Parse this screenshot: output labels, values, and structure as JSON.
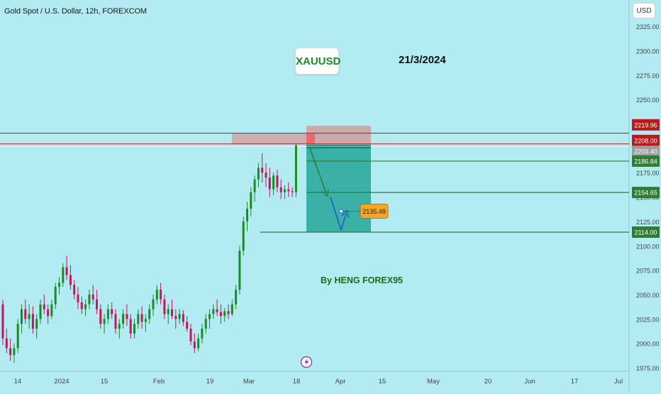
{
  "header": {
    "title": "Gold Spot / U.S. Dollar, 12h, FOREXCOM",
    "currency": "USD"
  },
  "annotations": {
    "symbol": "XAUUSD",
    "date": "21/3/2024",
    "author": "By HENG FOREX95"
  },
  "colors": {
    "background": "#b2ebf2",
    "bull": "#1b8a2a",
    "bear": "#c2185b",
    "red_line": "#c62828",
    "green_line": "#2e7d32",
    "zone_red": "#e57373",
    "zone_teal": "#26a69a",
    "arrow_green": "#2e7d32",
    "arrow_blue": "#1565c0",
    "price_orange": "#f5a623"
  },
  "chart_data": {
    "type": "candlestick",
    "ylim": [
      1975,
      2335
    ],
    "y_ticks": [
      "1975.00",
      "2000.00",
      "2025.00",
      "2050.00",
      "2075.00",
      "2100.00",
      "2125.00",
      "2150.00",
      "2175.00",
      "2200.00",
      "2225.00",
      "2250.00",
      "2275.00",
      "2300.00",
      "2325.00"
    ],
    "x_ticks": [
      "14",
      "2024",
      "15",
      "Feb",
      "19",
      "Mar",
      "18",
      "Apr",
      "15",
      "May",
      "20",
      "Jun",
      "17",
      "Jul"
    ],
    "price_tags": [
      {
        "label": "2219.96",
        "kind": "red"
      },
      {
        "label": "2208.00",
        "kind": "red"
      },
      {
        "label": "2203.40",
        "kind": "gray"
      },
      {
        "label": "2186.84",
        "kind": "green"
      },
      {
        "label": "2154.65",
        "kind": "green"
      },
      {
        "label": "2114.00",
        "kind": "green"
      }
    ],
    "float_tag": "2135.48",
    "candles_ohlc": [
      [
        2040,
        2045,
        1998,
        2005
      ],
      [
        2005,
        2015,
        1990,
        1995
      ],
      [
        1995,
        2005,
        1982,
        1988
      ],
      [
        1988,
        2000,
        1980,
        1995
      ],
      [
        1995,
        2025,
        1990,
        2020
      ],
      [
        2020,
        2040,
        2010,
        2035
      ],
      [
        2035,
        2045,
        2020,
        2025
      ],
      [
        2025,
        2040,
        2015,
        2030
      ],
      [
        2030,
        2038,
        2010,
        2015
      ],
      [
        2015,
        2030,
        2005,
        2025
      ],
      [
        2025,
        2045,
        2020,
        2040
      ],
      [
        2040,
        2050,
        2030,
        2035
      ],
      [
        2035,
        2040,
        2020,
        2028
      ],
      [
        2028,
        2045,
        2025,
        2040
      ],
      [
        2040,
        2062,
        2035,
        2058
      ],
      [
        2058,
        2068,
        2050,
        2062
      ],
      [
        2062,
        2082,
        2058,
        2078
      ],
      [
        2078,
        2090,
        2065,
        2070
      ],
      [
        2070,
        2080,
        2055,
        2060
      ],
      [
        2060,
        2065,
        2045,
        2050
      ],
      [
        2050,
        2058,
        2035,
        2042
      ],
      [
        2042,
        2048,
        2030,
        2035
      ],
      [
        2035,
        2045,
        2028,
        2040
      ],
      [
        2040,
        2055,
        2035,
        2050
      ],
      [
        2050,
        2060,
        2040,
        2045
      ],
      [
        2045,
        2055,
        2030,
        2035
      ],
      [
        2035,
        2040,
        2015,
        2020
      ],
      [
        2020,
        2030,
        2010,
        2025
      ],
      [
        2025,
        2040,
        2020,
        2035
      ],
      [
        2035,
        2042,
        2025,
        2030
      ],
      [
        2030,
        2035,
        2010,
        2015
      ],
      [
        2015,
        2025,
        2005,
        2020
      ],
      [
        2020,
        2035,
        2015,
        2030
      ],
      [
        2030,
        2040,
        2018,
        2025
      ],
      [
        2025,
        2030,
        2005,
        2010
      ],
      [
        2010,
        2025,
        2005,
        2020
      ],
      [
        2020,
        2035,
        2015,
        2030
      ],
      [
        2030,
        2038,
        2015,
        2022
      ],
      [
        2022,
        2030,
        2012,
        2025
      ],
      [
        2025,
        2040,
        2020,
        2035
      ],
      [
        2035,
        2050,
        2028,
        2045
      ],
      [
        2045,
        2060,
        2040,
        2055
      ],
      [
        2055,
        2062,
        2040,
        2045
      ],
      [
        2045,
        2050,
        2025,
        2030
      ],
      [
        2030,
        2040,
        2020,
        2035
      ],
      [
        2035,
        2045,
        2025,
        2028
      ],
      [
        2028,
        2035,
        2015,
        2025
      ],
      [
        2025,
        2035,
        2020,
        2030
      ],
      [
        2030,
        2034,
        2018,
        2022
      ],
      [
        2022,
        2028,
        2012,
        2015
      ],
      [
        2015,
        2020,
        1998,
        2002
      ],
      [
        2002,
        2010,
        1990,
        1995
      ],
      [
        1995,
        2010,
        1992,
        2005
      ],
      [
        2005,
        2020,
        2000,
        2015
      ],
      [
        2015,
        2030,
        2010,
        2025
      ],
      [
        2025,
        2035,
        2015,
        2030
      ],
      [
        2030,
        2040,
        2025,
        2035
      ],
      [
        2035,
        2045,
        2028,
        2032
      ],
      [
        2032,
        2040,
        2020,
        2028
      ],
      [
        2028,
        2036,
        2022,
        2033
      ],
      [
        2033,
        2040,
        2025,
        2030
      ],
      [
        2030,
        2045,
        2028,
        2040
      ],
      [
        2040,
        2060,
        2035,
        2055
      ],
      [
        2055,
        2100,
        2050,
        2095
      ],
      [
        2095,
        2130,
        2090,
        2125
      ],
      [
        2125,
        2145,
        2115,
        2138
      ],
      [
        2138,
        2160,
        2130,
        2155
      ],
      [
        2155,
        2172,
        2145,
        2168
      ],
      [
        2168,
        2185,
        2160,
        2180
      ],
      [
        2180,
        2195,
        2165,
        2175
      ],
      [
        2175,
        2185,
        2160,
        2170
      ],
      [
        2170,
        2180,
        2150,
        2158
      ],
      [
        2158,
        2175,
        2152,
        2172
      ],
      [
        2172,
        2178,
        2155,
        2160
      ],
      [
        2160,
        2168,
        2148,
        2155
      ],
      [
        2155,
        2162,
        2148,
        2158
      ],
      [
        2158,
        2165,
        2150,
        2156
      ],
      [
        2156,
        2160,
        2150,
        2155
      ],
      [
        2155,
        2205,
        2150,
        2203
      ]
    ]
  }
}
